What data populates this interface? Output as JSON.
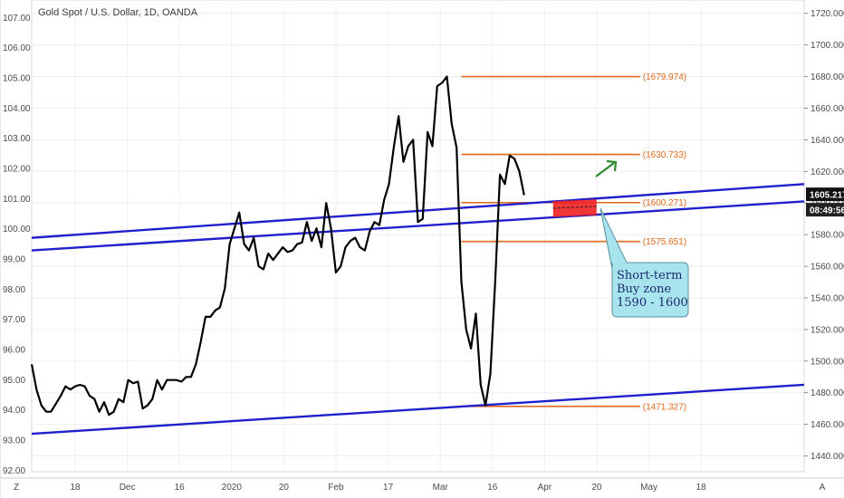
{
  "chart_data": {
    "type": "line",
    "title": "Gold Spot / U.S. Dollar, 1D, OANDA",
    "left_axis": {
      "ticks": [
        "107.00",
        "106.00",
        "105.00",
        "104.00",
        "103.00",
        "102.00",
        "101.00",
        "100.00",
        "99.00",
        "98.00",
        "97.00",
        "96.00",
        "95.00",
        "94.00",
        "93.00",
        "92.00"
      ],
      "range": [
        91.95,
        107.4
      ]
    },
    "right_axis": {
      "ticks": [
        "1720.000",
        "1700.000",
        "1680.000",
        "1660.000",
        "1640.000",
        "1620.000",
        "1600.000",
        "1580.000",
        "1560.000",
        "1540.000",
        "1520.000",
        "1500.000",
        "1480.000",
        "1460.000",
        "1440.000"
      ],
      "range": [
        1430,
        1725
      ]
    },
    "x_axis": {
      "labels": [
        "Z",
        "18",
        "Dec",
        "16",
        "2020",
        "20",
        "Feb",
        "17",
        "Mar",
        "16",
        "Apr",
        "20",
        "May",
        "18",
        "A"
      ],
      "range": [
        0,
        160
      ]
    },
    "price_badge": "1605.217",
    "time_badge": "08:49:56",
    "series": [
      {
        "values": [
          [
            0,
            1498
          ],
          [
            1,
            1482
          ],
          [
            2,
            1472
          ],
          [
            3,
            1468
          ],
          [
            4,
            1468
          ],
          [
            5,
            1473
          ],
          [
            6,
            1478
          ],
          [
            7,
            1484
          ],
          [
            8,
            1482
          ],
          [
            9,
            1484
          ],
          [
            10,
            1485
          ],
          [
            11,
            1484
          ],
          [
            12,
            1478
          ],
          [
            13,
            1476
          ],
          [
            14,
            1468
          ],
          [
            15,
            1474
          ],
          [
            16,
            1466
          ],
          [
            17,
            1468
          ],
          [
            18,
            1476
          ],
          [
            19,
            1474
          ],
          [
            20,
            1488
          ],
          [
            21,
            1486
          ],
          [
            22,
            1487
          ],
          [
            23,
            1470
          ],
          [
            24,
            1472
          ],
          [
            25,
            1476
          ],
          [
            26,
            1488
          ],
          [
            27,
            1482
          ],
          [
            28,
            1488
          ],
          [
            29,
            1488
          ],
          [
            30,
            1488
          ],
          [
            31,
            1487
          ],
          [
            32,
            1490
          ],
          [
            33,
            1490
          ],
          [
            34,
            1498
          ],
          [
            35,
            1512
          ],
          [
            36,
            1528
          ],
          [
            37,
            1528
          ],
          [
            38,
            1532
          ],
          [
            39,
            1534
          ],
          [
            40,
            1546
          ],
          [
            41,
            1574
          ],
          [
            42,
            1584
          ],
          [
            43,
            1594
          ],
          [
            44,
            1574
          ],
          [
            45,
            1570
          ],
          [
            46,
            1578
          ],
          [
            47,
            1560
          ],
          [
            48,
            1558
          ],
          [
            49,
            1568
          ],
          [
            50,
            1564
          ],
          [
            51,
            1568
          ],
          [
            52,
            1572
          ],
          [
            53,
            1569
          ],
          [
            54,
            1570
          ],
          [
            55,
            1574
          ],
          [
            56,
            1575
          ],
          [
            57,
            1588
          ],
          [
            58,
            1576
          ],
          [
            59,
            1584
          ],
          [
            60,
            1572
          ],
          [
            61,
            1600
          ],
          [
            62,
            1584
          ],
          [
            63,
            1556
          ],
          [
            64,
            1560
          ],
          [
            65,
            1572
          ],
          [
            66,
            1576
          ],
          [
            67,
            1578
          ],
          [
            68,
            1572
          ],
          [
            69,
            1570
          ],
          [
            70,
            1582
          ],
          [
            71,
            1588
          ],
          [
            72,
            1586
          ],
          [
            73,
            1602
          ],
          [
            74,
            1612
          ],
          [
            75,
            1635
          ],
          [
            76,
            1655
          ],
          [
            77,
            1626
          ],
          [
            78,
            1636
          ],
          [
            79,
            1640
          ],
          [
            80,
            1588
          ],
          [
            81,
            1590
          ],
          [
            82,
            1645
          ],
          [
            83,
            1636
          ],
          [
            84,
            1674
          ],
          [
            85,
            1676
          ],
          [
            86,
            1680
          ],
          [
            87,
            1650
          ],
          [
            88,
            1635
          ],
          [
            89,
            1550
          ],
          [
            90,
            1520
          ],
          [
            91,
            1508
          ],
          [
            92,
            1530
          ],
          [
            93,
            1485
          ],
          [
            94,
            1472
          ],
          [
            95,
            1492
          ],
          [
            96,
            1550
          ],
          [
            97,
            1618
          ],
          [
            98,
            1612
          ],
          [
            99,
            1630
          ],
          [
            100,
            1628
          ],
          [
            101,
            1620
          ],
          [
            102,
            1605
          ]
        ]
      }
    ],
    "channel_lines": [
      [
        [
          0,
          1578
        ],
        [
          160,
          1612
        ]
      ],
      [
        [
          0,
          1570
        ],
        [
          160,
          1601
        ]
      ],
      [
        [
          0,
          1454
        ],
        [
          160,
          1485
        ]
      ]
    ],
    "levels": [
      {
        "label": "(1679.974)",
        "value": 1679.974
      },
      {
        "label": "(1630.733)",
        "value": 1630.733
      },
      {
        "label": "(1600.271)",
        "value": 1600.271
      },
      {
        "label": "(1575.651)",
        "value": 1575.651
      },
      {
        "label": "(1471.327)",
        "value": 1471.327
      }
    ],
    "buy_zone": {
      "x": [
        108,
        117
      ],
      "y": [
        1590,
        1600
      ]
    },
    "callout": {
      "lines": [
        "Short-term",
        "Buy zone",
        "1590 - 1600"
      ]
    },
    "colors": {
      "price_line": "#000000",
      "channel": "#1f1fcc",
      "levels": "#e06a1c",
      "buy_zone": "#ee2020",
      "arrow": "#2e8b2e",
      "callout_fill": "#a8e4ee",
      "badge_price": "#111111",
      "badge_time": "#222222"
    }
  }
}
